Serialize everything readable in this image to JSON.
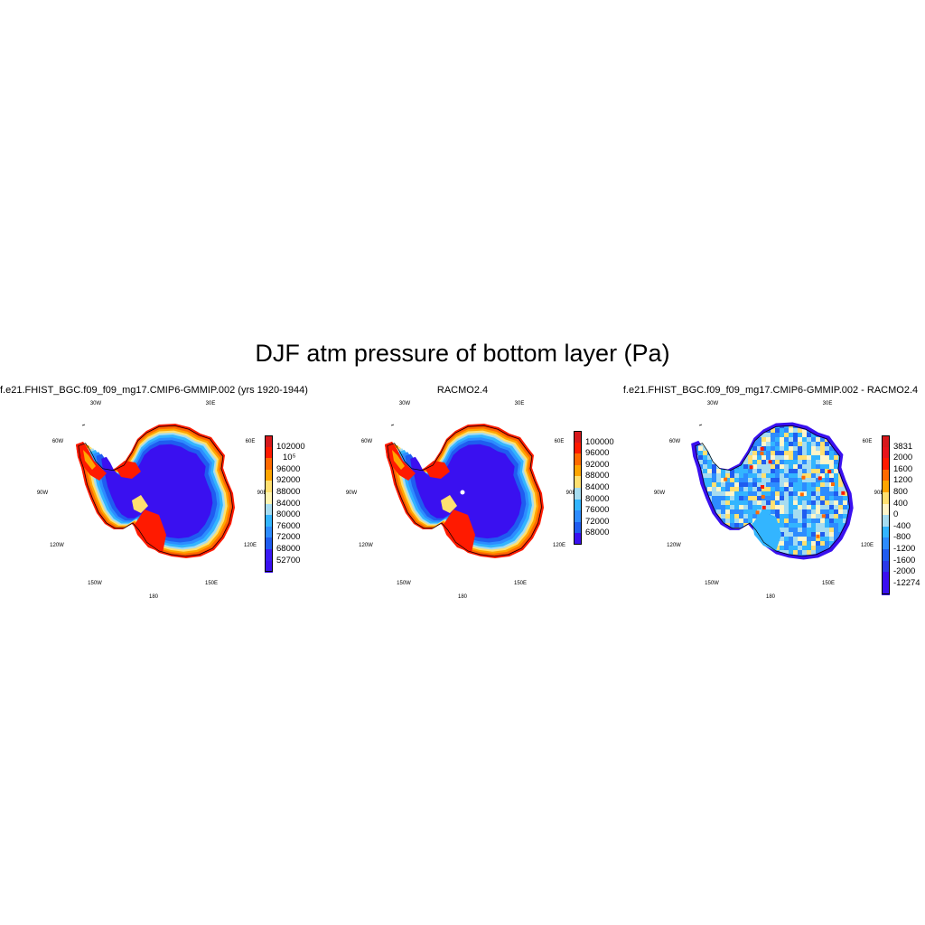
{
  "title": "DJF atm pressure of bottom layer (Pa)",
  "lon_labels": [
    "30W",
    "30E",
    "60W",
    "60E",
    "90W",
    "90E",
    "120W",
    "120E",
    "150W",
    "150E",
    "180"
  ],
  "panels": [
    {
      "title": "f.e21.FHIST_BGC.f09_f09_mg17.CMIP6-GMMIP.002 (yrs 1920-1944)",
      "colorbar": {
        "labels": [
          "102000",
          "10⁵",
          "96000",
          "92000",
          "88000",
          "84000",
          "80000",
          "76000",
          "72000",
          "68000",
          "52700"
        ],
        "colors": [
          "#d7191c",
          "#ff1a00",
          "#ff6a00",
          "#ffa500",
          "#ffe070",
          "#fff5b0",
          "#a6dcf0",
          "#33b5ff",
          "#2d8cff",
          "#1f5cf0",
          "#3a1af5",
          "#3a10f0"
        ]
      }
    },
    {
      "title": "RACMO2.4",
      "colorbar": {
        "labels": [
          "100000",
          "96000",
          "92000",
          "88000",
          "84000",
          "80000",
          "76000",
          "72000",
          "68000"
        ],
        "colors": [
          "#d7191c",
          "#ff1a00",
          "#ff6a00",
          "#ffa500",
          "#ffe070",
          "#a6dcf0",
          "#33b5ff",
          "#2d8cff",
          "#1f5cf0",
          "#3a10f0"
        ]
      }
    },
    {
      "title": "f.e21.FHIST_BGC.f09_f09_mg17.CMIP6-GMMIP.002 - RACMO2.4",
      "colorbar": {
        "labels": [
          "3831",
          "2000",
          "1600",
          "1200",
          "800",
          "400",
          "0",
          "-400",
          "-800",
          "-1200",
          "-1600",
          "-2000",
          "-12274"
        ],
        "colors": [
          "#d7191c",
          "#e8141a",
          "#ff1a00",
          "#ff6a00",
          "#ffa500",
          "#ffe070",
          "#fff5c8",
          "#a6dcf0",
          "#33b5ff",
          "#2d8cff",
          "#1f5cf0",
          "#2a3ae8",
          "#3a10f0",
          "#3a10f0"
        ]
      }
    }
  ]
}
